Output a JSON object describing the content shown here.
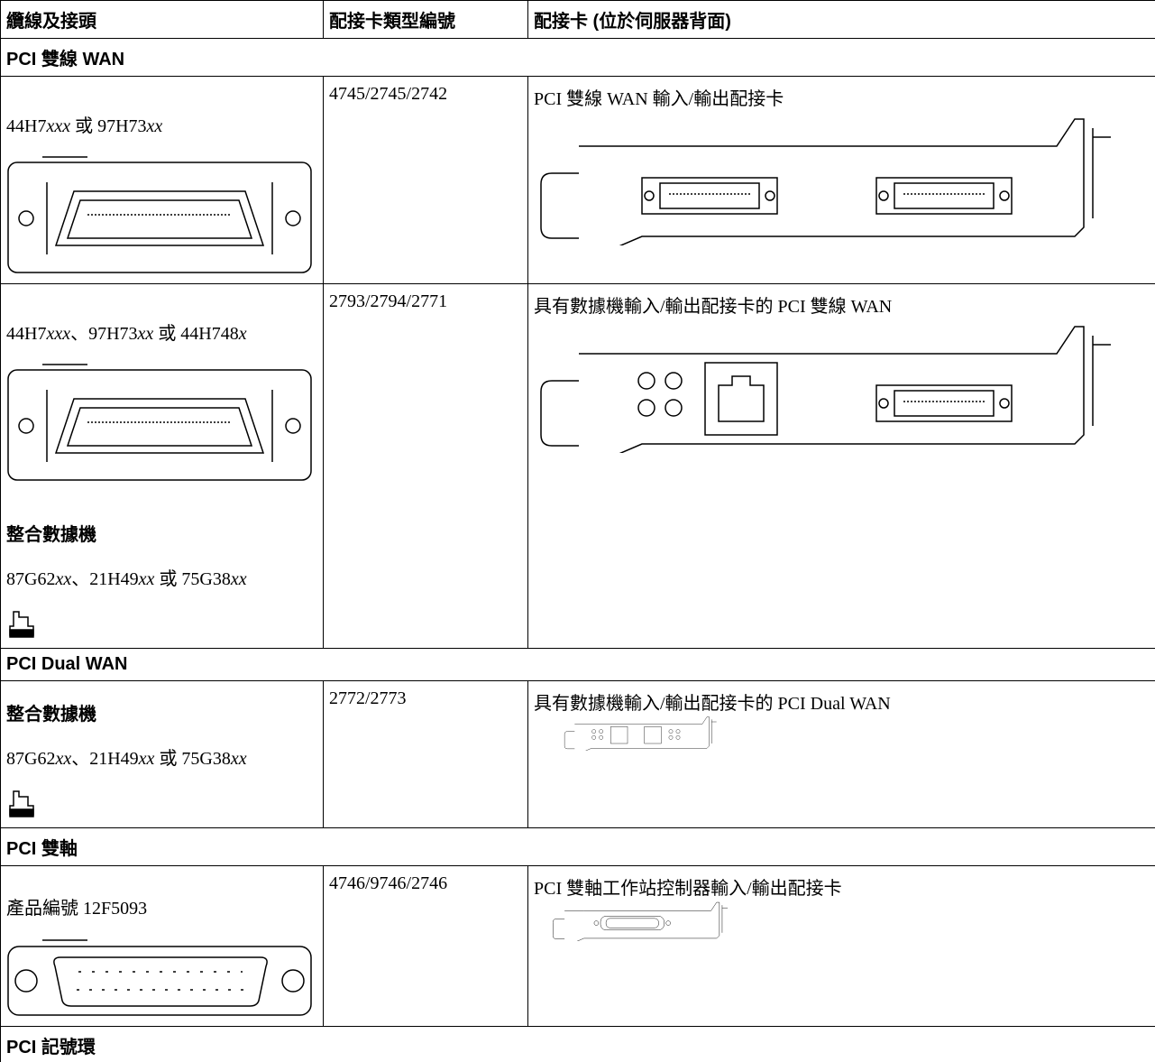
{
  "table": {
    "header": [
      "纜線及接頭",
      "配接卡類型編號",
      "配接卡 (位於伺服器背面)"
    ],
    "sections": [
      {
        "title": "PCI 雙線 WAN",
        "rows": [
          {
            "cable": [
              {
                "parts": [
                  "44H7",
                  "xxx",
                  " 或 97H73",
                  "xx"
                ]
              }
            ],
            "type": "4745/2745/2742",
            "adapter": "PCI 雙線 WAN 輸入/輸出配接卡"
          },
          {
            "cable": [
              {
                "parts": [
                  "44H7",
                  "xxx",
                  "、97H73",
                  "xx",
                  " 或 44H748",
                  "x"
                ]
              },
              {
                "heading": "整合數據機"
              },
              {
                "parts": [
                  "87G62",
                  "xx",
                  "、21H49",
                  "xx",
                  " 或 75G38",
                  "xx"
                ]
              }
            ],
            "type": "2793/2794/2771",
            "adapter": "具有數據機輸入/輸出配接卡的 PCI 雙線 WAN"
          }
        ]
      },
      {
        "title": "PCI Dual WAN",
        "rows": [
          {
            "cable": [
              {
                "heading": "整合數據機"
              },
              {
                "parts": [
                  "87G62",
                  "xx",
                  "、21H49",
                  "xx",
                  " 或 75G38",
                  "xx"
                ]
              }
            ],
            "type": "2772/2773",
            "adapter": "具有數據機輸入/輸出配接卡的 PCI Dual WAN"
          }
        ]
      },
      {
        "title": "PCI 雙軸",
        "rows": [
          {
            "cable": [
              {
                "parts": [
                  "產品編號 12F5093"
                ]
              }
            ],
            "type": "4746/9746/2746",
            "adapter": "PCI 雙軸工作站控制器輸入/輸出配接卡"
          }
        ]
      },
      {
        "title": "PCI 記號環",
        "rows": []
      }
    ]
  }
}
